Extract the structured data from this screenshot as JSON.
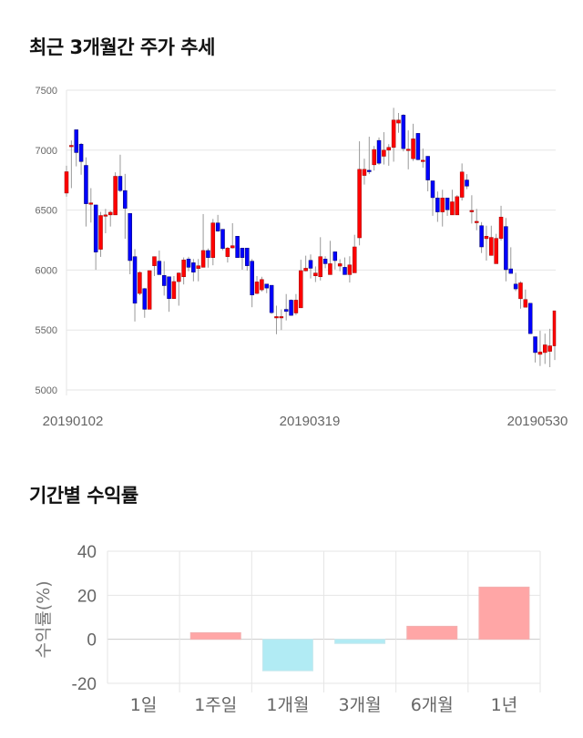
{
  "sections": {
    "price_title": "최근 3개월간 주가 추세",
    "return_title": "기간별 수익률"
  },
  "colors": {
    "up": "#ff0000",
    "down": "#0000ff",
    "wick": "#999999",
    "grid": "#e6e6e6",
    "bar_pos": "#ffa6a6",
    "bar_neg": "#b1ebf4"
  },
  "chart_data": [
    {
      "type": "candlestick",
      "title": "최근 3개월간 주가 추세",
      "ylim": [
        5000,
        7500
      ],
      "yticks": [
        "7500",
        "7000",
        "6500",
        "6000",
        "5500",
        "5000"
      ],
      "xticks": [
        {
          "label": "20190102",
          "index": 0
        },
        {
          "label": "20190319",
          "index": 50
        },
        {
          "label": "20190530",
          "index": 96
        }
      ],
      "ohlc_fields": [
        "open",
        "high",
        "low",
        "close"
      ],
      "ohlc": [
        [
          6642,
          6870,
          6612,
          6820
        ],
        [
          7035,
          7081,
          6683,
          7040
        ],
        [
          7170,
          7170,
          6865,
          6980
        ],
        [
          7050,
          7060,
          6795,
          6905
        ],
        [
          6873,
          6940,
          6363,
          6553
        ],
        [
          6560,
          6683,
          6396,
          6560
        ],
        [
          6543,
          6543,
          6002,
          6150
        ],
        [
          6173,
          6485,
          6110,
          6455
        ],
        [
          6460,
          6510,
          6307,
          6460
        ],
        [
          6460,
          6495,
          6363,
          6482
        ],
        [
          6460,
          6815,
          6460,
          6782
        ],
        [
          6782,
          6962,
          6650,
          6663
        ],
        [
          6663,
          6802,
          6261,
          6515
        ],
        [
          6472,
          6472,
          5965,
          6079
        ],
        [
          6112,
          6175,
          5571,
          5723
        ],
        [
          5805,
          5990,
          5790,
          5980
        ],
        [
          5845,
          5850,
          5602,
          5673
        ],
        [
          5673,
          5995,
          5673,
          5995
        ],
        [
          6036,
          6112,
          5950,
          6112
        ],
        [
          6074,
          6163,
          5962,
          5962
        ],
        [
          5955,
          6074,
          5787,
          5870
        ],
        [
          5944,
          5944,
          5652,
          5762
        ],
        [
          5762,
          5950,
          5762,
          5904
        ],
        [
          5904,
          5980,
          5703,
          5975
        ],
        [
          5944,
          6105,
          5880,
          6084
        ],
        [
          6092,
          6110,
          5990,
          6023
        ],
        [
          6061,
          6092,
          5906,
          5982
        ],
        [
          6013,
          6092,
          5906,
          6036
        ],
        [
          6023,
          6467,
          6023,
          6163
        ],
        [
          6163,
          6180,
          6020,
          6104
        ],
        [
          6104,
          6426,
          6040,
          6393
        ],
        [
          6393,
          6460,
          6320,
          6325
        ],
        [
          6340,
          6340,
          6165,
          6180
        ],
        [
          6112,
          6193,
          6063,
          6183
        ],
        [
          6185,
          6391,
          6180,
          6203
        ],
        [
          6282,
          6282,
          6104,
          6104
        ],
        [
          6183,
          6183,
          6003,
          6104
        ],
        [
          6183,
          6183,
          5995,
          6036
        ],
        [
          6074,
          6092,
          5690,
          5792
        ],
        [
          5805,
          5950,
          5800,
          5901
        ],
        [
          5835,
          5944,
          5820,
          5921
        ],
        [
          5883,
          5883,
          5807,
          5850
        ],
        [
          5873,
          5873,
          5635,
          5645
        ],
        [
          5612,
          5703,
          5465,
          5612
        ],
        [
          5612,
          5672,
          5500,
          5612
        ],
        [
          5672,
          5800,
          5580,
          5655
        ],
        [
          5749,
          5755,
          5622,
          5622
        ],
        [
          5642,
          5800,
          5625,
          5749
        ],
        [
          5685,
          6086,
          5685,
          5995
        ],
        [
          5993,
          6120,
          5990,
          6015
        ],
        [
          6081,
          6130,
          5930,
          6015
        ],
        [
          5952,
          6030,
          5900,
          5975
        ],
        [
          5944,
          6274,
          5913,
          6112
        ],
        [
          6092,
          6115,
          6015,
          6053
        ],
        [
          5962,
          6244,
          5962,
          6053
        ],
        [
          6152,
          6152,
          6005,
          6079
        ],
        [
          6033,
          6090,
          5990,
          6053
        ],
        [
          6023,
          6105,
          5962,
          5962
        ],
        [
          5962,
          6115,
          5896,
          6043
        ],
        [
          5977,
          6294,
          5977,
          6193
        ],
        [
          6269,
          7074,
          6206,
          6840
        ],
        [
          6789,
          6929,
          6713,
          6840
        ],
        [
          6832,
          7112,
          6800,
          6820
        ],
        [
          6878,
          7035,
          6830,
          7005
        ],
        [
          7081,
          7106,
          6878,
          6891
        ],
        [
          6949,
          7150,
          6880,
          7000
        ],
        [
          7000,
          7050,
          6870,
          7023
        ],
        [
          7023,
          7353,
          6904,
          7251
        ],
        [
          7226,
          7310,
          7145,
          7251
        ],
        [
          7292,
          7300,
          6990,
          7013
        ],
        [
          7008,
          7165,
          6840,
          7008
        ],
        [
          6929,
          7220,
          6910,
          7094
        ],
        [
          7140,
          7140,
          6916,
          6921
        ],
        [
          6916,
          7013,
          6853,
          6916
        ],
        [
          6949,
          6949,
          6657,
          6751
        ],
        [
          6744,
          6744,
          6452,
          6604
        ],
        [
          6601,
          6655,
          6402,
          6485
        ],
        [
          6485,
          6670,
          6363,
          6601
        ],
        [
          6601,
          6601,
          6452,
          6503
        ],
        [
          6460,
          6670,
          6460,
          6569
        ],
        [
          6460,
          6625,
          6460,
          6612
        ],
        [
          6607,
          6889,
          6580,
          6818
        ],
        [
          6751,
          6800,
          6675,
          6700
        ],
        [
          6497,
          6624,
          6388,
          6497
        ],
        [
          6406,
          6510,
          6332,
          6406
        ],
        [
          6370,
          6400,
          6142,
          6193
        ],
        [
          6262,
          6370,
          6079,
          6282
        ],
        [
          6122,
          6370,
          6122,
          6272
        ],
        [
          6053,
          6302,
          6053,
          6264
        ],
        [
          6264,
          6536,
          6246,
          6442
        ],
        [
          6363,
          6434,
          5906,
          6003
        ],
        [
          6010,
          6190,
          5972,
          5972
        ],
        [
          5883,
          5977,
          5825,
          5843
        ],
        [
          5761,
          5906,
          5678,
          5893
        ],
        [
          5690,
          5838,
          5690,
          5754
        ],
        [
          5723,
          5723,
          5470,
          5470
        ],
        [
          5444,
          5444,
          5229,
          5312
        ],
        [
          5297,
          5495,
          5200,
          5317
        ],
        [
          5312,
          5470,
          5217,
          5376
        ],
        [
          5322,
          5510,
          5190,
          5368
        ],
        [
          5368,
          5660,
          5250,
          5660
        ]
      ]
    },
    {
      "type": "bar",
      "title": "기간별 수익률",
      "ylabel": "수익률(%)",
      "ylim": [
        -20,
        40
      ],
      "yticks": [
        "40",
        "20",
        "0",
        "-20"
      ],
      "categories": [
        "1일",
        "1주일",
        "1개월",
        "3개월",
        "6개월",
        "1년"
      ],
      "values": [
        0,
        3.0,
        -14.3,
        -1.9,
        5.9,
        23.7
      ],
      "grid": true
    }
  ]
}
